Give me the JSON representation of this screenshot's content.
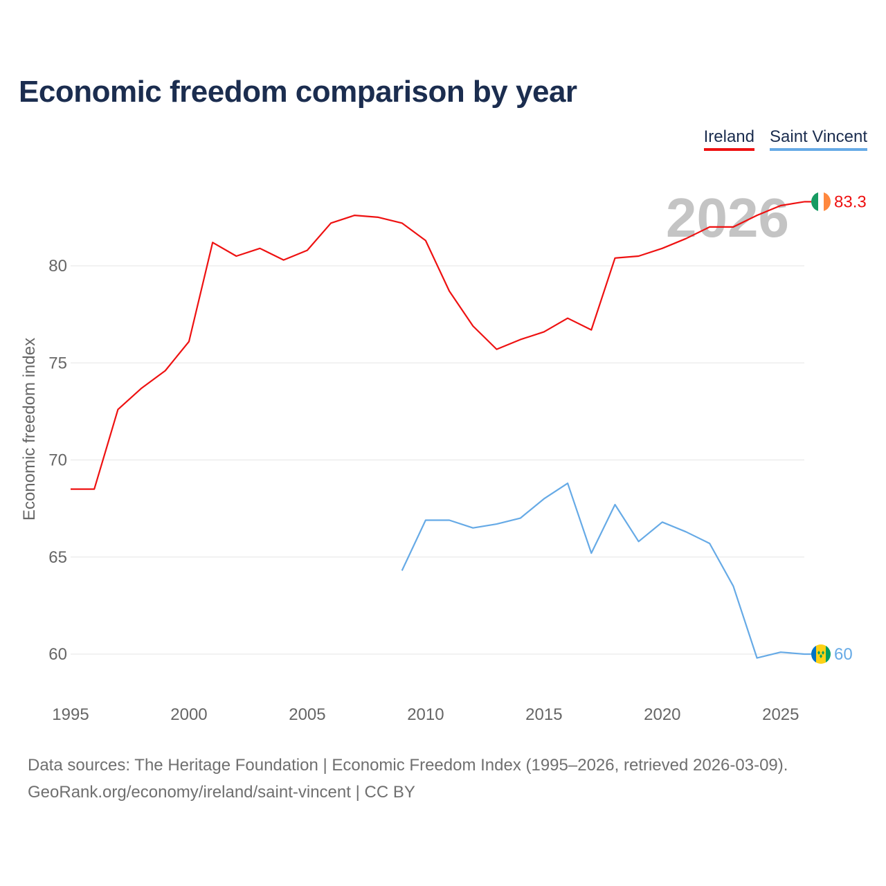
{
  "title": "Economic freedom comparison by year",
  "legend": [
    {
      "name": "Ireland",
      "color": "#ee1111"
    },
    {
      "name": "Saint Vincent",
      "color": "#66aae6"
    }
  ],
  "footer": {
    "line1": "Data sources: The Heritage Foundation | Economic Freedom Index (1995–2026, retrieved 2026-03-09).",
    "line2": "GeoRank.org/economy/ireland/saint-vincent | CC BY"
  },
  "chart_data": {
    "type": "line",
    "title": "Economic freedom comparison by year",
    "ylabel": "Economic freedom index",
    "xlabel": "",
    "xlim": [
      1995,
      2026
    ],
    "ylim": [
      57.5,
      84.5
    ],
    "xticks": [
      1995,
      2000,
      2005,
      2010,
      2015,
      2020,
      2025
    ],
    "yticks": [
      60,
      65,
      70,
      75,
      80
    ],
    "watermark": "2026",
    "series": [
      {
        "name": "Ireland",
        "color": "#ee1111",
        "flag": "ireland-flag",
        "end_label": "83.3",
        "x": [
          1995,
          1996,
          1997,
          1998,
          1999,
          2000,
          2001,
          2002,
          2003,
          2004,
          2005,
          2006,
          2007,
          2008,
          2009,
          2010,
          2011,
          2012,
          2013,
          2014,
          2015,
          2016,
          2017,
          2018,
          2019,
          2020,
          2021,
          2022,
          2023,
          2024,
          2025,
          2026
        ],
        "values": [
          68.5,
          68.5,
          72.6,
          73.7,
          74.6,
          76.1,
          81.2,
          80.5,
          80.9,
          80.3,
          80.8,
          82.2,
          82.6,
          82.5,
          82.2,
          81.3,
          78.7,
          76.9,
          75.7,
          76.2,
          76.6,
          77.3,
          76.7,
          80.4,
          80.5,
          80.9,
          81.4,
          82.0,
          82.0,
          82.6,
          83.1,
          83.3
        ]
      },
      {
        "name": "Saint Vincent",
        "color": "#66aae6",
        "flag": "saint-vincent-flag",
        "end_label": "60",
        "x": [
          2009,
          2010,
          2011,
          2012,
          2013,
          2014,
          2015,
          2016,
          2017,
          2018,
          2019,
          2020,
          2021,
          2022,
          2023,
          2024,
          2025,
          2026
        ],
        "values": [
          64.3,
          66.9,
          66.9,
          66.5,
          66.7,
          67.0,
          68.0,
          68.8,
          65.2,
          67.7,
          65.8,
          66.8,
          66.3,
          65.7,
          63.5,
          59.8,
          60.1,
          60.0
        ]
      }
    ]
  }
}
